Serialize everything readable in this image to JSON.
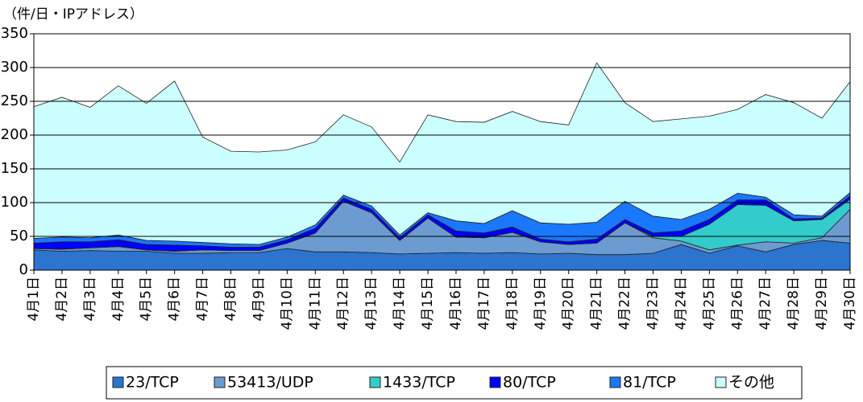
{
  "chart_data": {
    "type": "area",
    "stacked": true,
    "y_label": "（件/日・IPアドレス）",
    "categories": [
      "4月1日",
      "4月2日",
      "4月3日",
      "4月4日",
      "4月5日",
      "4月6日",
      "4月7日",
      "4月8日",
      "4月9日",
      "4月10日",
      "4月11日",
      "4月12日",
      "4月13日",
      "4月14日",
      "4月15日",
      "4月16日",
      "4月17日",
      "4月18日",
      "4月19日",
      "4月20日",
      "4月21日",
      "4月22日",
      "4月23日",
      "4月24日",
      "4月25日",
      "4月26日",
      "4月27日",
      "4月28日",
      "4月29日",
      "4月30日"
    ],
    "series": [
      {
        "name": "23/TCP",
        "color": "#2b74d0",
        "values": [
          30,
          28,
          29,
          28,
          28,
          25,
          25,
          26,
          26,
          32,
          27,
          27,
          26,
          24,
          25,
          26,
          25,
          26,
          24,
          25,
          23,
          23,
          25,
          38,
          25,
          36,
          27,
          38,
          44,
          40
        ]
      },
      {
        "name": "53413/UDP",
        "color": "#6b9bd1",
        "values": [
          2,
          3,
          4,
          7,
          2,
          3,
          5,
          3,
          3,
          8,
          28,
          75,
          59,
          20,
          52,
          23,
          23,
          30,
          18,
          13,
          17,
          47,
          23,
          5,
          5,
          1,
          15,
          2,
          4,
          50
        ]
      },
      {
        "name": "1433/TCP",
        "color": "#33cccc",
        "values": [
          0,
          0,
          0,
          0,
          0,
          0,
          0,
          0,
          0,
          0,
          0,
          0,
          0,
          0,
          0,
          0,
          0,
          0,
          0,
          0,
          0,
          0,
          2,
          7,
          38,
          60,
          54,
          33,
          27,
          15
        ]
      },
      {
        "name": "80/TCP",
        "color": "#0000ff",
        "values": [
          8,
          11,
          9,
          10,
          8,
          9,
          6,
          5,
          5,
          5,
          7,
          5,
          5,
          4,
          5,
          9,
          7,
          8,
          4,
          4,
          6,
          5,
          5,
          8,
          7,
          7,
          8,
          3,
          2,
          5
        ]
      },
      {
        "name": "81/TCP",
        "color": "#1a78ff",
        "values": [
          7,
          7,
          6,
          7,
          6,
          6,
          5,
          5,
          4,
          4,
          5,
          4,
          5,
          4,
          3,
          15,
          14,
          24,
          24,
          26,
          25,
          27,
          25,
          17,
          15,
          10,
          4,
          6,
          3,
          5
        ]
      },
      {
        "name": "その他",
        "color": "#ccffff",
        "values": [
          195,
          207,
          193,
          221,
          203,
          237,
          156,
          137,
          137,
          129,
          123,
          119,
          117,
          108,
          145,
          147,
          150,
          147,
          150,
          147,
          236,
          146,
          140,
          149,
          138,
          124,
          152,
          166,
          145,
          164
        ]
      }
    ],
    "ylim": [
      0,
      350
    ],
    "yticks": [
      0,
      50,
      100,
      150,
      200,
      250,
      300,
      350
    ],
    "grid": true,
    "legend": "bottom"
  }
}
